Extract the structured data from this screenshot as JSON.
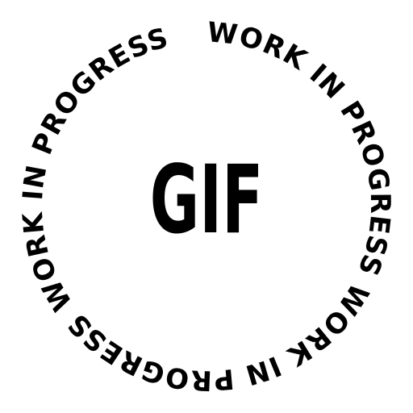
{
  "badge": {
    "center_label": "GIF",
    "ring_text": "WORK IN PROGRESS WORK IN PROGRESS WORK IN PROGRESS",
    "colors": {
      "text": "#000000",
      "background": "#ffffff"
    }
  }
}
